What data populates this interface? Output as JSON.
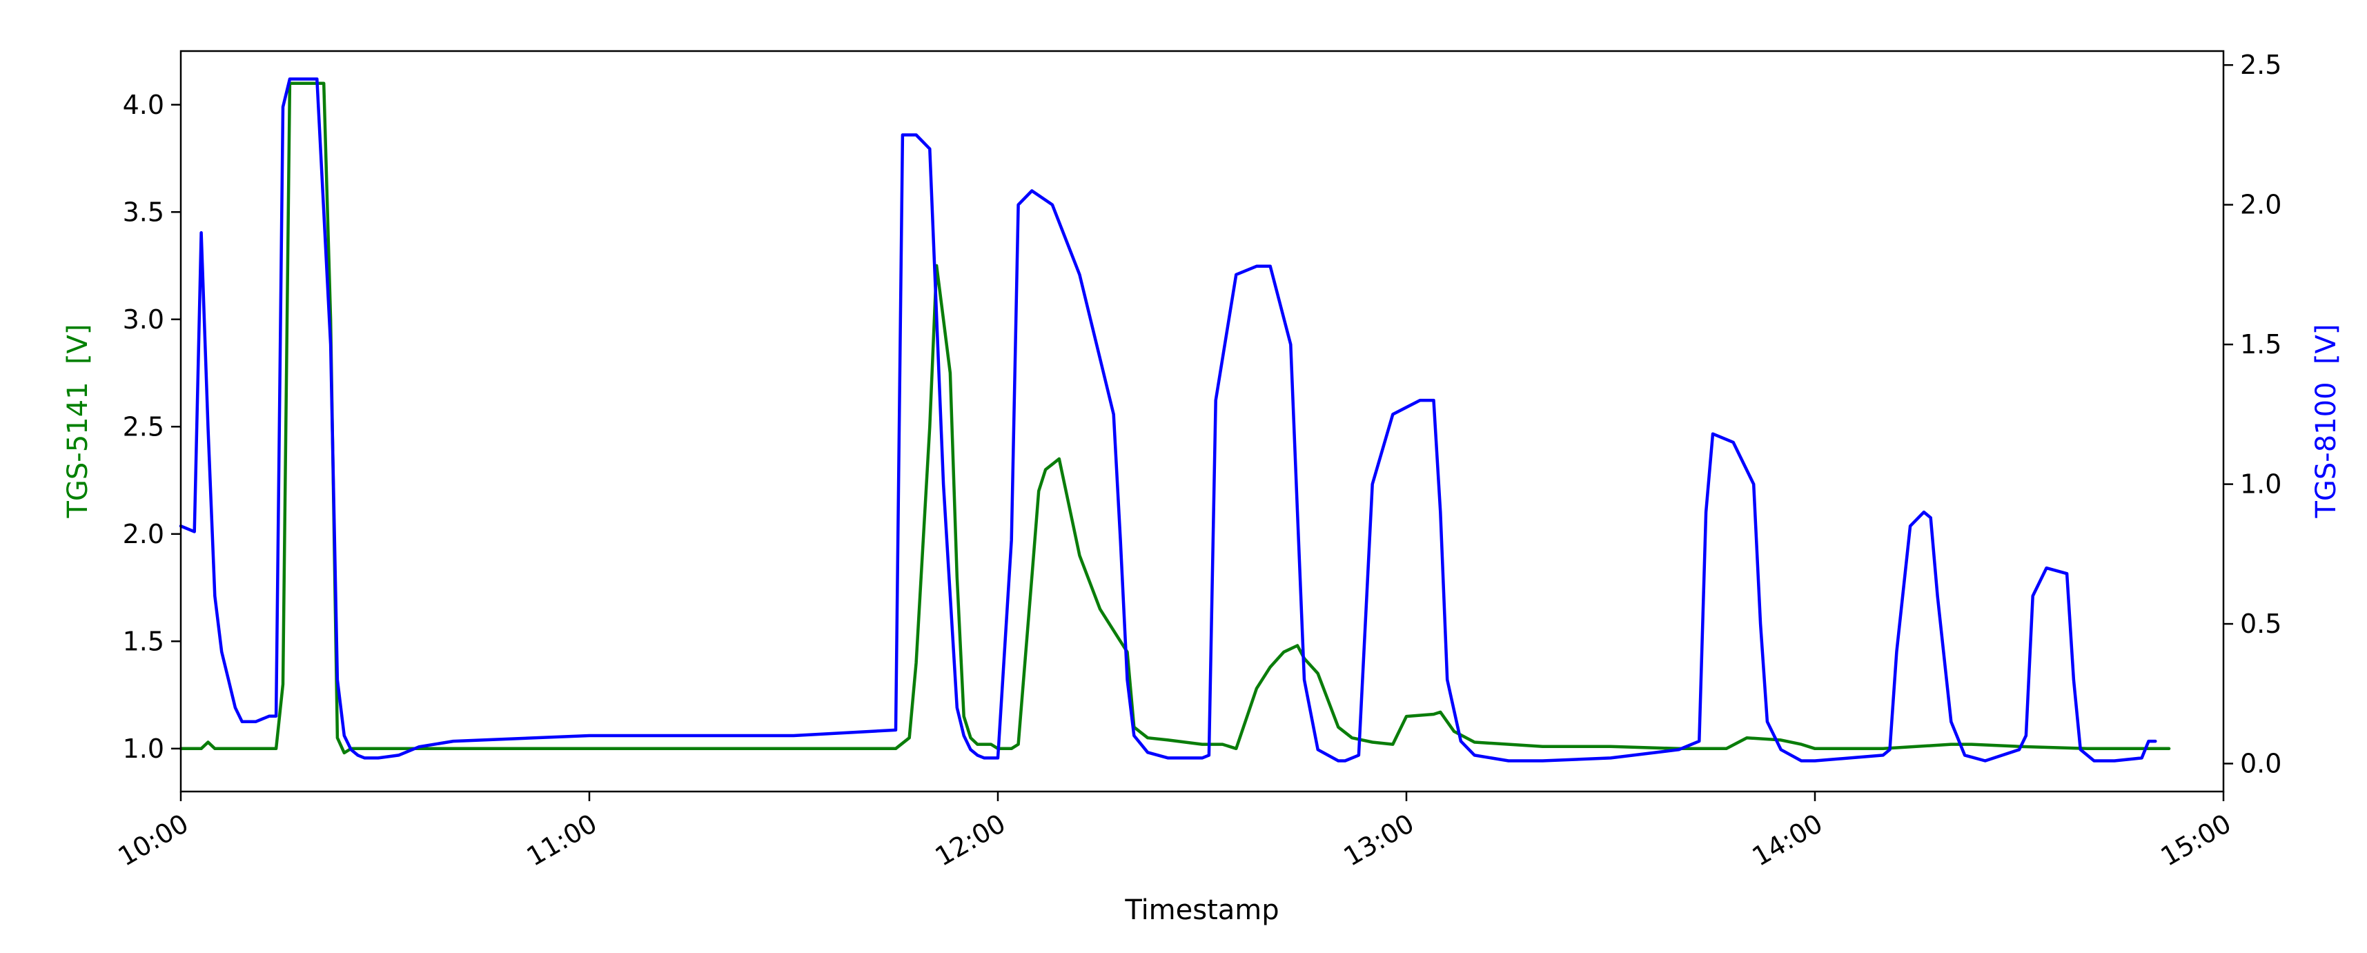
{
  "chart_data": {
    "type": "line",
    "xlabel": "Timestamp",
    "ylabel_left": "TGS-5141  [V]",
    "ylabel_right": "TGS-8100  [V]",
    "x_ticks": [
      "10:00",
      "11:00",
      "12:00",
      "13:00",
      "14:00",
      "15:00"
    ],
    "xlim": [
      "10:00",
      "15:00"
    ],
    "y_left": {
      "ylim": [
        0.8,
        4.25
      ],
      "ticks": [
        "1.0",
        "1.5",
        "2.0",
        "2.5",
        "3.0",
        "3.5",
        "4.0"
      ]
    },
    "y_right": {
      "ylim": [
        -0.1,
        2.55
      ],
      "ticks": [
        "0.0",
        "0.5",
        "1.0",
        "1.5",
        "2.0",
        "2.5"
      ]
    },
    "grid": false,
    "colors": {
      "left_axis": "#008000",
      "right_axis": "#0000ff",
      "frame": "#000000",
      "tick_text": "#000000"
    },
    "series": [
      {
        "axis": "left",
        "color": "#0a7d0a",
        "x": [
          "10:00",
          "10:03",
          "10:04",
          "10:05",
          "10:10",
          "10:14",
          "10:15",
          "10:16",
          "10:17",
          "10:20",
          "10:21",
          "10:22",
          "10:23",
          "10:24",
          "10:25",
          "10:30",
          "10:45",
          "11:00",
          "11:30",
          "11:45",
          "11:47",
          "11:48",
          "11:50",
          "11:51",
          "11:52",
          "11:53",
          "11:54",
          "11:55",
          "11:56",
          "11:57",
          "11:58",
          "11:59",
          "12:00",
          "12:02",
          "12:03",
          "12:05",
          "12:06",
          "12:07",
          "12:09",
          "12:10",
          "12:12",
          "12:15",
          "12:18",
          "12:19",
          "12:20",
          "12:22",
          "12:25",
          "12:30",
          "12:33",
          "12:35",
          "12:38",
          "12:40",
          "12:42",
          "12:44",
          "12:45",
          "12:47",
          "12:50",
          "12:52",
          "12:55",
          "12:58",
          "13:00",
          "13:04",
          "13:05",
          "13:07",
          "13:10",
          "13:20",
          "13:30",
          "13:40",
          "13:47",
          "13:50",
          "13:55",
          "13:58",
          "14:00",
          "14:10",
          "14:20",
          "14:23",
          "14:30",
          "14:40",
          "14:50",
          "14:52"
        ],
        "values": [
          1.0,
          1.0,
          1.03,
          1.0,
          1.0,
          1.0,
          1.3,
          4.1,
          4.1,
          4.1,
          4.1,
          3.0,
          1.05,
          0.98,
          1.0,
          1.0,
          1.0,
          1.0,
          1.0,
          1.0,
          1.05,
          1.4,
          2.5,
          3.25,
          3.0,
          2.75,
          1.8,
          1.15,
          1.05,
          1.02,
          1.02,
          1.02,
          1.0,
          1.0,
          1.02,
          1.8,
          2.2,
          2.3,
          2.35,
          2.2,
          1.9,
          1.65,
          1.5,
          1.45,
          1.1,
          1.05,
          1.04,
          1.02,
          1.02,
          1.0,
          1.28,
          1.38,
          1.45,
          1.48,
          1.42,
          1.35,
          1.1,
          1.05,
          1.03,
          1.02,
          1.15,
          1.16,
          1.17,
          1.08,
          1.03,
          1.01,
          1.01,
          1.0,
          1.0,
          1.05,
          1.04,
          1.02,
          1.0,
          1.0,
          1.02,
          1.02,
          1.01,
          1.0,
          1.0,
          1.0
        ]
      },
      {
        "axis": "right",
        "color": "#0000ff",
        "x": [
          "10:00",
          "10:02",
          "10:03",
          "10:04",
          "10:05",
          "10:06",
          "10:07",
          "10:08",
          "10:09",
          "10:11",
          "10:13",
          "10:14",
          "10:15",
          "10:16",
          "10:20",
          "10:22",
          "10:23",
          "10:24",
          "10:25",
          "10:26",
          "10:27",
          "10:29",
          "10:32",
          "10:35",
          "10:40",
          "11:00",
          "11:30",
          "11:45",
          "11:46",
          "11:48",
          "11:50",
          "11:52",
          "11:54",
          "11:55",
          "11:56",
          "11:57",
          "11:58",
          "12:00",
          "12:02",
          "12:03",
          "12:05",
          "12:08",
          "12:12",
          "12:15",
          "12:17",
          "12:18",
          "12:19",
          "12:20",
          "12:22",
          "12:25",
          "12:30",
          "12:31",
          "12:32",
          "12:35",
          "12:38",
          "12:40",
          "12:43",
          "12:44",
          "12:45",
          "12:47",
          "12:50",
          "12:51",
          "12:52",
          "12:53",
          "12:55",
          "12:58",
          "13:02",
          "13:04",
          "13:05",
          "13:06",
          "13:08",
          "13:10",
          "13:15",
          "13:20",
          "13:30",
          "13:40",
          "13:43",
          "13:44",
          "13:45",
          "13:48",
          "13:51",
          "13:52",
          "13:53",
          "13:55",
          "13:58",
          "14:00",
          "14:10",
          "14:11",
          "14:12",
          "14:14",
          "14:16",
          "14:17",
          "14:18",
          "14:20",
          "14:22",
          "14:25",
          "14:30",
          "14:31",
          "14:32",
          "14:34",
          "14:37",
          "14:38",
          "14:39",
          "14:41",
          "14:44",
          "14:48",
          "14:49",
          "14:50"
        ],
        "values": [
          0.85,
          0.83,
          1.9,
          1.2,
          0.6,
          0.4,
          0.3,
          0.2,
          0.15,
          0.15,
          0.17,
          0.17,
          2.35,
          2.45,
          2.45,
          1.5,
          0.3,
          0.1,
          0.05,
          0.03,
          0.02,
          0.02,
          0.03,
          0.06,
          0.08,
          0.1,
          0.1,
          0.12,
          2.25,
          2.25,
          2.2,
          1.0,
          0.2,
          0.1,
          0.05,
          0.03,
          0.02,
          0.02,
          0.8,
          2.0,
          2.05,
          2.0,
          1.75,
          1.45,
          1.25,
          0.8,
          0.3,
          0.1,
          0.04,
          0.02,
          0.02,
          0.03,
          1.3,
          1.75,
          1.78,
          1.78,
          1.5,
          0.9,
          0.3,
          0.05,
          0.01,
          0.01,
          0.02,
          0.03,
          1.0,
          1.25,
          1.3,
          1.3,
          0.9,
          0.3,
          0.08,
          0.03,
          0.01,
          0.01,
          0.02,
          0.05,
          0.08,
          0.9,
          1.18,
          1.15,
          1.0,
          0.5,
          0.15,
          0.05,
          0.01,
          0.01,
          0.03,
          0.05,
          0.4,
          0.85,
          0.9,
          0.88,
          0.6,
          0.15,
          0.03,
          0.01,
          0.05,
          0.1,
          0.6,
          0.7,
          0.68,
          0.3,
          0.05,
          0.01,
          0.01,
          0.02,
          0.08,
          0.08
        ]
      }
    ]
  }
}
